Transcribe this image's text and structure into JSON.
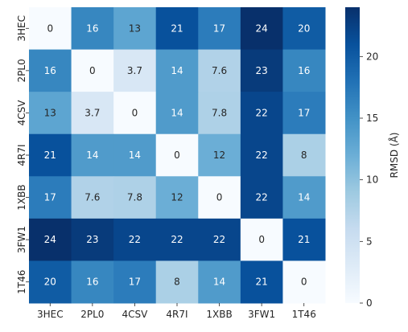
{
  "chart_data": {
    "type": "heatmap",
    "title": "",
    "xlabel": "",
    "ylabel": "",
    "x_categories": [
      "3HEC",
      "2PL0",
      "4CSV",
      "4R7I",
      "1XBB",
      "3FW1",
      "1T46"
    ],
    "y_categories": [
      "3HEC",
      "2PL0",
      "4CSV",
      "4R7I",
      "1XBB",
      "3FW1",
      "1T46"
    ],
    "values": [
      [
        0,
        16,
        13,
        21,
        17,
        24,
        20
      ],
      [
        16,
        0,
        3.7,
        14,
        7.6,
        23,
        16
      ],
      [
        13,
        3.7,
        0,
        14,
        7.8,
        22,
        17
      ],
      [
        21,
        14,
        14,
        0,
        12,
        22,
        8
      ],
      [
        17,
        7.6,
        7.8,
        12,
        0,
        22,
        14
      ],
      [
        24,
        23,
        22,
        22,
        22,
        0,
        21
      ],
      [
        20,
        16,
        17,
        8,
        14,
        21,
        0
      ]
    ],
    "colorbar": {
      "label": "RMSD (Å)",
      "min": 0,
      "max": 24,
      "ticks": [
        0,
        5,
        10,
        15,
        20
      ],
      "colormap": "Blues",
      "palette": [
        "#f7fbff",
        "#deebf7",
        "#c6dbef",
        "#9ecae1",
        "#6baed6",
        "#4292c6",
        "#2171b5",
        "#08519c",
        "#08306b"
      ]
    },
    "annotations": true
  }
}
